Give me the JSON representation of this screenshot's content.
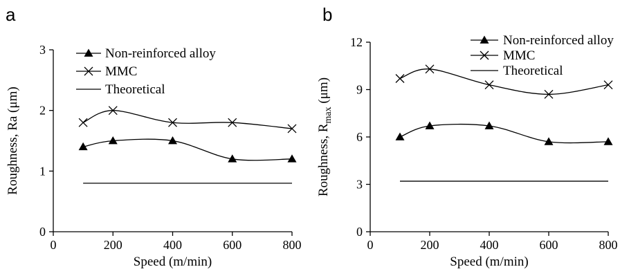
{
  "chart_data": [
    {
      "panel": "a",
      "type": "line",
      "xlabel": "Speed (m/min)",
      "ylabel": "Roughness, Ra (μm)",
      "ylabel_parts": {
        "main": "Roughness, Ra (",
        "sub": "",
        "end": "μm)"
      },
      "xlim": [
        0,
        800
      ],
      "ylim": [
        0,
        3
      ],
      "xticks": [
        0,
        200,
        400,
        600,
        800
      ],
      "yticks": [
        0,
        1,
        2,
        3
      ],
      "xtick_labels": [
        "0",
        "200",
        "400",
        "600",
        "800"
      ],
      "ytick_labels": [
        "0",
        "1",
        "2",
        "3"
      ],
      "grid": false,
      "legend_position": "top-left",
      "series": [
        {
          "name": "Non-reinforced alloy",
          "marker": "triangle",
          "x": [
            100,
            200,
            400,
            600,
            800
          ],
          "values": [
            1.4,
            1.5,
            1.5,
            1.2,
            1.2
          ]
        },
        {
          "name": "MMC",
          "marker": "x",
          "x": [
            100,
            200,
            400,
            600,
            800
          ],
          "values": [
            1.8,
            2.0,
            1.8,
            1.8,
            1.7
          ]
        },
        {
          "name": "Theoretical",
          "marker": "none",
          "x": [
            100,
            800
          ],
          "values": [
            0.8,
            0.8
          ]
        }
      ]
    },
    {
      "panel": "b",
      "type": "line",
      "xlabel": "Speed (m/min)",
      "ylabel": "Roughness, Rmax (μm)",
      "ylabel_parts": {
        "main": "Roughness, R",
        "sub": "max",
        "end": " (μm)"
      },
      "xlim": [
        0,
        800
      ],
      "ylim": [
        0,
        12
      ],
      "xticks": [
        0,
        200,
        400,
        600,
        800
      ],
      "yticks": [
        0,
        3,
        6,
        9,
        12
      ],
      "xtick_labels": [
        "0",
        "200",
        "400",
        "600",
        "800"
      ],
      "ytick_labels": [
        "0",
        "3",
        "6",
        "9",
        "12"
      ],
      "grid": false,
      "legend_position": "top-right",
      "series": [
        {
          "name": "Non-reinforced alloy",
          "marker": "triangle",
          "x": [
            100,
            200,
            400,
            600,
            800
          ],
          "values": [
            6.0,
            6.7,
            6.7,
            5.7,
            5.7
          ]
        },
        {
          "name": "MMC",
          "marker": "x",
          "x": [
            100,
            200,
            400,
            600,
            800
          ],
          "values": [
            9.7,
            10.3,
            9.3,
            8.7,
            9.3
          ]
        },
        {
          "name": "Theoretical",
          "marker": "none",
          "x": [
            100,
            800
          ],
          "values": [
            3.2,
            3.2
          ]
        }
      ]
    }
  ]
}
